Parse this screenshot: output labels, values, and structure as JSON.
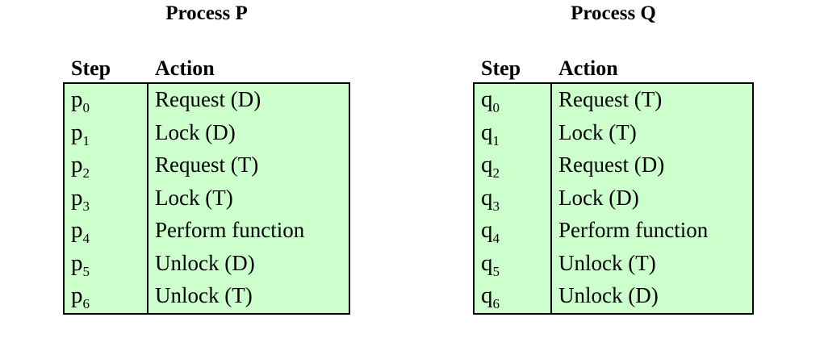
{
  "headers": {
    "step": "Step",
    "action": "Action"
  },
  "process_p": {
    "title": "Process P",
    "rows": [
      {
        "letter": "p",
        "sub": "0",
        "action": "Request (D)"
      },
      {
        "letter": "p",
        "sub": "1",
        "action": "Lock (D)"
      },
      {
        "letter": "p",
        "sub": "2",
        "action": "Request (T)"
      },
      {
        "letter": "p",
        "sub": "3",
        "action": "Lock (T)"
      },
      {
        "letter": "p",
        "sub": "4",
        "action": "Perform function"
      },
      {
        "letter": "p",
        "sub": "5",
        "action": "Unlock (D)"
      },
      {
        "letter": "p",
        "sub": "6",
        "action": "Unlock (T)"
      }
    ]
  },
  "process_q": {
    "title": "Process Q",
    "rows": [
      {
        "letter": "q",
        "sub": "0",
        "action": "Request (T)"
      },
      {
        "letter": "q",
        "sub": "1",
        "action": "Lock (T)"
      },
      {
        "letter": "q",
        "sub": "2",
        "action": "Request (D)"
      },
      {
        "letter": "q",
        "sub": "3",
        "action": "Lock (D)"
      },
      {
        "letter": "q",
        "sub": "4",
        "action": "Perform function"
      },
      {
        "letter": "q",
        "sub": "5",
        "action": "Unlock (T)"
      },
      {
        "letter": "q",
        "sub": "6",
        "action": "Unlock (D)"
      }
    ]
  },
  "colors": {
    "table_fill": "#ccffcc",
    "border": "#000000",
    "text": "#000000"
  }
}
